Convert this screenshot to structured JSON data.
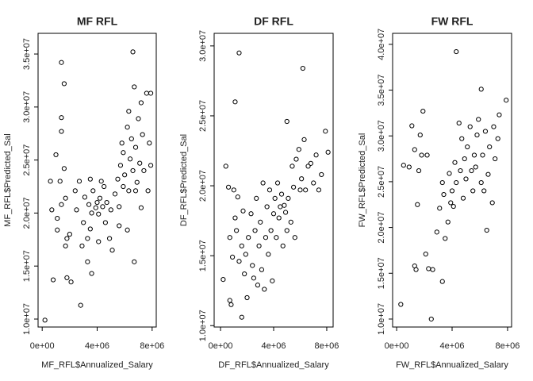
{
  "chart_data": [
    {
      "type": "scatter",
      "title": "MF RFL",
      "x_label": "MF_RFL$Annualized_Salary",
      "y_label": "MF_RFL$Predicted_Sal",
      "color": "#000000",
      "x": [
        200000,
        1400000,
        1600000,
        600000,
        700000,
        800000,
        1000000,
        1100000,
        1100000,
        1300000,
        1400000,
        1400000,
        1400000,
        1600000,
        1700000,
        1700000,
        1800000,
        1800000,
        2000000,
        2100000,
        2400000,
        2500000,
        2700000,
        2800000,
        2900000,
        3000000,
        3100000,
        3300000,
        3300000,
        3400000,
        3500000,
        3500000,
        3600000,
        3600000,
        3700000,
        3900000,
        4000000,
        4100000,
        4100000,
        4200000,
        4300000,
        4400000,
        4500000,
        4600000,
        4700000,
        4900000,
        5000000,
        5100000,
        5300000,
        5500000,
        5600000,
        5600000,
        5700000,
        5800000,
        5900000,
        5900000,
        6000000,
        6200000,
        6200000,
        6300000,
        6300000,
        6400000,
        6500000,
        6600000,
        6700000,
        6700000,
        6800000,
        6900000,
        7000000,
        7100000,
        7200000,
        7200000,
        7300000,
        7400000,
        6600000,
        7600000,
        7700000,
        7800000,
        7900000,
        7900000,
        6800000
      ],
      "values": [
        9900000,
        34200000,
        32200000,
        23000000,
        20300000,
        13700000,
        25500000,
        19500000,
        18400000,
        23000000,
        20800000,
        29000000,
        27700000,
        24200000,
        21400000,
        16900000,
        17600000,
        13900000,
        18000000,
        13500000,
        22100000,
        20300000,
        23000000,
        11300000,
        16900000,
        19100000,
        21500000,
        17600000,
        15400000,
        20800000,
        23200000,
        18500000,
        14300000,
        20000000,
        22100000,
        20500000,
        21000000,
        17300000,
        19900000,
        21400000,
        23000000,
        20600000,
        22500000,
        19100000,
        21000000,
        17600000,
        20300000,
        16500000,
        21800000,
        23200000,
        20600000,
        18800000,
        24500000,
        26600000,
        22500000,
        25700000,
        23600000,
        28100000,
        18400000,
        29600000,
        22100000,
        25100000,
        27000000,
        24000000,
        31900000,
        15400000,
        26200000,
        22900000,
        28900000,
        24700000,
        30400000,
        20500000,
        27400000,
        24000000,
        35200000,
        31300000,
        22100000,
        26600000,
        24500000,
        31300000,
        22100000
      ],
      "xlim": [
        -300000,
        8300000
      ],
      "ylim": [
        9250000,
        36950000
      ],
      "xticks": [
        {
          "value": 0,
          "label": "0e+00"
        },
        {
          "value": 4000000,
          "label": "4e+06"
        },
        {
          "value": 8000000,
          "label": "8e+06"
        }
      ],
      "yticks": [
        {
          "value": 10000000,
          "label": "1.0e+07"
        },
        {
          "value": 15000000,
          "label": "1.5e+07"
        },
        {
          "value": 20000000,
          "label": "2.0e+07"
        },
        {
          "value": 25000000,
          "label": "2.5e+07"
        },
        {
          "value": 30000000,
          "label": "3.0e+07"
        },
        {
          "value": 35000000,
          "label": "3.5e+07"
        }
      ]
    },
    {
      "type": "scatter",
      "title": "DF RFL",
      "x_label": "DF_RFL$Annualized_Salary",
      "y_label": "DF_RFL$Predicted_Sal",
      "color": "#000000",
      "x": [
        200000,
        400000,
        600000,
        700000,
        700000,
        800000,
        900000,
        1000000,
        1100000,
        1100000,
        1200000,
        1300000,
        1400000,
        1400000,
        1600000,
        1600000,
        1700000,
        1800000,
        1900000,
        2000000,
        2100000,
        2300000,
        2400000,
        2500000,
        2600000,
        2700000,
        2800000,
        2900000,
        3000000,
        3100000,
        3200000,
        3300000,
        3400000,
        3500000,
        3600000,
        3700000,
        3800000,
        3900000,
        4000000,
        4100000,
        4200000,
        4300000,
        4400000,
        4500000,
        4600000,
        4700000,
        4800000,
        4900000,
        5000000,
        5000000,
        5100000,
        5300000,
        5400000,
        5500000,
        5600000,
        5700000,
        5900000,
        6000000,
        6100000,
        6200000,
        6300000,
        6400000,
        6600000,
        6800000,
        7000000,
        7200000,
        7400000,
        7600000,
        7900000,
        8100000
      ],
      "values": [
        13300000,
        21400000,
        19900000,
        16300000,
        11800000,
        11500000,
        14900000,
        19700000,
        17700000,
        26000000,
        16800000,
        19200000,
        29500000,
        14600000,
        15700000,
        10600000,
        18200000,
        13700000,
        15100000,
        12000000,
        16300000,
        18000000,
        14300000,
        13400000,
        16800000,
        19100000,
        12900000,
        15700000,
        17400000,
        14000000,
        20200000,
        12600000,
        16300000,
        18500000,
        15100000,
        19700000,
        16800000,
        13200000,
        18000000,
        19100000,
        16300000,
        20200000,
        17700000,
        18500000,
        19400000,
        15700000,
        18600000,
        18100000,
        24600000,
        16800000,
        19100000,
        17400000,
        21400000,
        19900000,
        16300000,
        21900000,
        22600000,
        19700000,
        20500000,
        28400000,
        23300000,
        19700000,
        21400000,
        21600000,
        20200000,
        22200000,
        19700000,
        20800000,
        23900000,
        22400000
      ],
      "xlim": [
        -480000,
        8480000
      ],
      "ylim": [
        9900000,
        30900000
      ],
      "xticks": [
        {
          "value": 0,
          "label": "0e+00"
        },
        {
          "value": 4000000,
          "label": "4e+06"
        },
        {
          "value": 8000000,
          "label": "8e+06"
        }
      ],
      "yticks": [
        {
          "value": 10000000,
          "label": "1.0e+07"
        },
        {
          "value": 15000000,
          "label": "1.5e+07"
        },
        {
          "value": 20000000,
          "label": "2.0e+07"
        },
        {
          "value": 25000000,
          "label": "2.5e+07"
        },
        {
          "value": 30000000,
          "label": "3.0e+07"
        }
      ]
    },
    {
      "type": "scatter",
      "title": "FW RFL",
      "x_label": "FW_RFL$Annualized_Salary",
      "y_label": "FW_RFL$Predicted_Sal",
      "color": "#000000",
      "x": [
        300000,
        500000,
        900000,
        1100000,
        1300000,
        1300000,
        1400000,
        1500000,
        1600000,
        1700000,
        1800000,
        1900000,
        2100000,
        2200000,
        2300000,
        2500000,
        2600000,
        2900000,
        3100000,
        3300000,
        3300000,
        3400000,
        3500000,
        3700000,
        3800000,
        3900000,
        4000000,
        4100000,
        4200000,
        4300000,
        4300000,
        4500000,
        4600000,
        4700000,
        4800000,
        4900000,
        5000000,
        5100000,
        5300000,
        5400000,
        5500000,
        5600000,
        5700000,
        5800000,
        5900000,
        6100000,
        6100000,
        6200000,
        6300000,
        6400000,
        6500000,
        6600000,
        6700000,
        6900000,
        7000000,
        7100000,
        7300000,
        7400000,
        7900000
      ],
      "values": [
        11600000,
        26800000,
        26600000,
        31100000,
        15800000,
        28500000,
        15400000,
        22500000,
        26200000,
        30100000,
        27900000,
        32700000,
        17100000,
        27900000,
        15500000,
        10000000,
        15400000,
        19500000,
        22100000,
        24900000,
        14100000,
        23600000,
        18800000,
        20600000,
        25900000,
        22700000,
        24000000,
        22300000,
        27100000,
        39200000,
        24900000,
        31400000,
        26200000,
        29700000,
        23200000,
        27500000,
        25300000,
        28800000,
        31000000,
        26200000,
        24000000,
        27900000,
        26600000,
        30100000,
        31800000,
        24900000,
        35100000,
        27900000,
        24000000,
        30500000,
        19700000,
        25800000,
        28800000,
        22700000,
        31000000,
        27500000,
        29700000,
        32300000,
        33900000
      ],
      "xlim": [
        -290000,
        8290000
      ],
      "ylim": [
        9130000,
        41200000
      ],
      "xticks": [
        {
          "value": 0,
          "label": "0e+00"
        },
        {
          "value": 4000000,
          "label": "4e+06"
        },
        {
          "value": 8000000,
          "label": "8e+06"
        }
      ],
      "yticks": [
        {
          "value": 10000000,
          "label": "1.0e+07"
        },
        {
          "value": 15000000,
          "label": "1.5e+07"
        },
        {
          "value": 20000000,
          "label": "2.0e+07"
        },
        {
          "value": 25000000,
          "label": "2.5e+07"
        },
        {
          "value": 30000000,
          "label": "3.0e+07"
        },
        {
          "value": 35000000,
          "label": "3.5e+07"
        },
        {
          "value": 40000000,
          "label": "4.0e+07"
        }
      ]
    }
  ]
}
